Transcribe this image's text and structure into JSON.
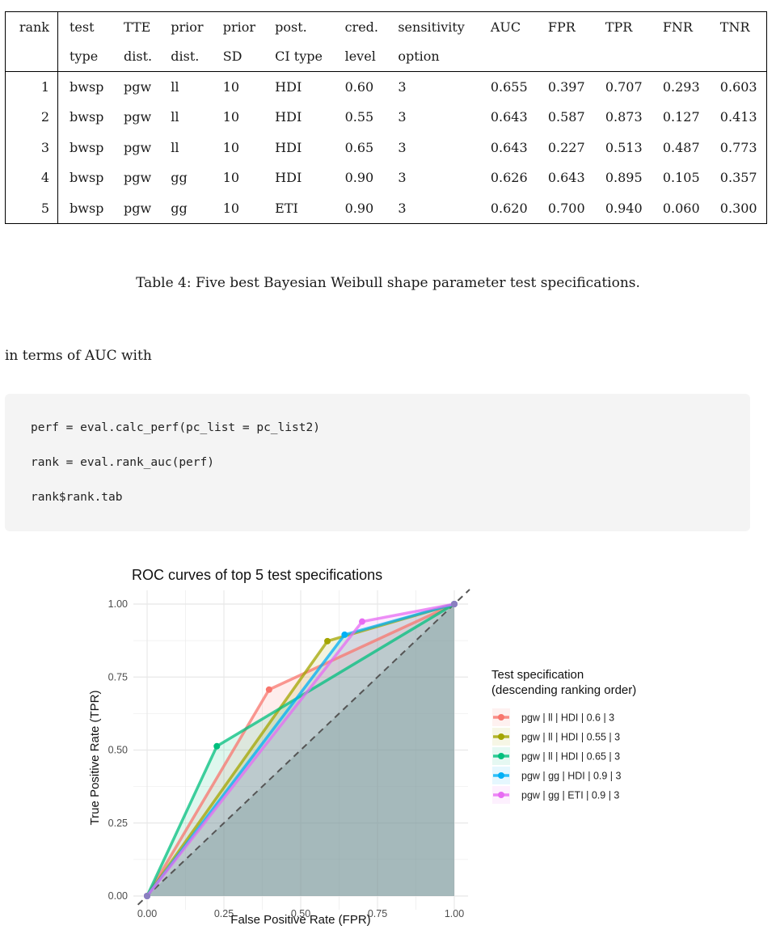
{
  "table": {
    "headers": [
      [
        "rank",
        ""
      ],
      [
        "test",
        "type"
      ],
      [
        "TTE",
        "dist."
      ],
      [
        "prior",
        "dist."
      ],
      [
        "prior",
        "SD"
      ],
      [
        "post.",
        "CI type"
      ],
      [
        "cred.",
        "level"
      ],
      [
        "sensitivity",
        "option"
      ],
      [
        "AUC",
        ""
      ],
      [
        "FPR",
        ""
      ],
      [
        "TPR",
        ""
      ],
      [
        "FNR",
        ""
      ],
      [
        "TNR",
        ""
      ]
    ],
    "rows": [
      [
        "1",
        "bwsp",
        "pgw",
        "ll",
        "10",
        "HDI",
        "0.60",
        "3",
        "0.655",
        "0.397",
        "0.707",
        "0.293",
        "0.603"
      ],
      [
        "2",
        "bwsp",
        "pgw",
        "ll",
        "10",
        "HDI",
        "0.55",
        "3",
        "0.643",
        "0.587",
        "0.873",
        "0.127",
        "0.413"
      ],
      [
        "3",
        "bwsp",
        "pgw",
        "ll",
        "10",
        "HDI",
        "0.65",
        "3",
        "0.643",
        "0.227",
        "0.513",
        "0.487",
        "0.773"
      ],
      [
        "4",
        "bwsp",
        "pgw",
        "gg",
        "10",
        "HDI",
        "0.90",
        "3",
        "0.626",
        "0.643",
        "0.895",
        "0.105",
        "0.357"
      ],
      [
        "5",
        "bwsp",
        "pgw",
        "gg",
        "10",
        "ETI",
        "0.90",
        "3",
        "0.620",
        "0.700",
        "0.940",
        "0.060",
        "0.300"
      ]
    ]
  },
  "caption": "Table 4: Five best Bayesian Weibull shape parameter test specifications.",
  "paragraph": "in terms of AUC with",
  "code": [
    "perf = eval.calc_perf(pc_list = pc_list2)",
    "rank = eval.rank_auc(perf)",
    "rank$rank.tab"
  ],
  "chart_data": {
    "type": "line",
    "title": "ROC curves of top 5 test specifications",
    "xlabel": "False Positive Rate (FPR)",
    "ylabel": "True Positive Rate (TPR)",
    "xlim": [
      0,
      1
    ],
    "ylim": [
      0,
      1
    ],
    "xticks": [
      "0.00",
      "0.25",
      "0.50",
      "0.75",
      "1.00"
    ],
    "yticks": [
      "0.00",
      "0.25",
      "0.50",
      "0.75",
      "1.00"
    ],
    "grid": true,
    "diagonal_reference": true,
    "legend_title": [
      "Test specification",
      "(descending ranking order)"
    ],
    "legend_position": "right",
    "series": [
      {
        "name": "pgw | ll | HDI | 0.6 | 3",
        "color": "#F8766D",
        "points": [
          [
            0,
            0
          ],
          [
            0.397,
            0.707
          ],
          [
            1,
            1
          ]
        ]
      },
      {
        "name": "pgw | ll | HDI | 0.55 | 3",
        "color": "#A3A500",
        "points": [
          [
            0,
            0
          ],
          [
            0.587,
            0.873
          ],
          [
            1,
            1
          ]
        ]
      },
      {
        "name": "pgw | ll | HDI | 0.65 | 3",
        "color": "#00BF7D",
        "points": [
          [
            0,
            0
          ],
          [
            0.227,
            0.513
          ],
          [
            1,
            1
          ]
        ]
      },
      {
        "name": "pgw | gg | HDI | 0.9 | 3",
        "color": "#00B0F6",
        "points": [
          [
            0,
            0
          ],
          [
            0.643,
            0.895
          ],
          [
            1,
            1
          ]
        ]
      },
      {
        "name": "pgw | gg | ETI | 0.9 | 3",
        "color": "#E76BF3",
        "points": [
          [
            0,
            0
          ],
          [
            0.7,
            0.94
          ],
          [
            1,
            1
          ]
        ]
      }
    ]
  }
}
